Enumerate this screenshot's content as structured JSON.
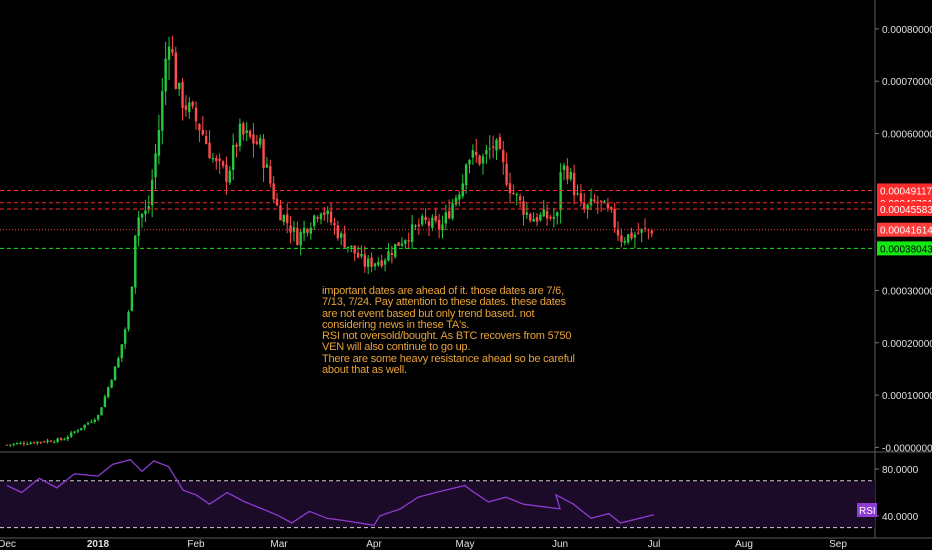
{
  "chart_data": {
    "type": "candlestick",
    "main_panel": {
      "ylim": [
        -5e-06,
        0.00084
      ],
      "y_ticks": [
        "-0.00000000",
        "0.00010000",
        "0.00020000",
        "0.00030000",
        "0.00060000",
        "0.00070000",
        "0.00080000"
      ],
      "x_ticks": [
        "Dec",
        "2018",
        "Feb",
        "Mar",
        "Apr",
        "May",
        "Jun",
        "Jul",
        "Aug",
        "Sep"
      ],
      "price_path": [
        [
          "Dec",
          5e-06
        ],
        [
          "2017-12-10",
          1e-05
        ],
        [
          "2017-12-20",
          1.5e-05
        ],
        [
          "2017-12-28",
          4.5e-05
        ],
        [
          "2018",
          6e-05
        ],
        [
          "2018-01-08",
          0.00017
        ],
        [
          "2018-01-12",
          0.00027
        ],
        [
          "2018-01-14",
          0.00044
        ],
        [
          "2018-01-18",
          0.00045
        ],
        [
          "2018-01-22",
          0.00062
        ],
        [
          "2018-01-25",
          0.0008
        ],
        [
          "2018-01-28",
          0.00068
        ],
        [
          "2018-02-05",
          0.00061
        ],
        [
          "2018-02-10",
          0.00054
        ],
        [
          "2018-02-14",
          0.00052
        ],
        [
          "2018-02-18",
          0.0006
        ],
        [
          "2018-02-25",
          0.00058
        ],
        [
          "2018-03-03",
          0.00046
        ],
        [
          "2018-03-10",
          0.0004
        ],
        [
          "2018-03-18",
          0.00046
        ],
        [
          "2018-03-25",
          0.0004
        ],
        [
          "2018-04-02",
          0.00035
        ],
        [
          "2018-04-08",
          0.00036
        ],
        [
          "2018-04-15",
          0.0004
        ],
        [
          "2018-04-22",
          0.00043
        ],
        [
          "2018-04-28",
          0.00042
        ],
        [
          "May",
          0.00052
        ],
        [
          "2018-05-05",
          0.00056
        ],
        [
          "2018-05-12",
          0.00055
        ],
        [
          "2018-05-16",
          0.00058
        ],
        [
          "2018-05-22",
          0.00049
        ],
        [
          "2018-05-28",
          0.00044
        ],
        [
          "Jun",
          0.00044
        ],
        [
          "2018-06-05",
          0.00054
        ],
        [
          "2018-06-10",
          0.00053
        ],
        [
          "2018-06-15",
          0.00045
        ],
        [
          "2018-06-20",
          0.00047
        ],
        [
          "2018-06-25",
          0.00044
        ],
        [
          "2018-06-28",
          0.0004
        ],
        [
          "Jul",
          0.000418
        ]
      ],
      "horizontal_levels": [
        {
          "label": "0.00049117",
          "value": 0.00049117,
          "color": "#ff2b2b",
          "style": "dashed"
        },
        {
          "label": "0.00046761",
          "value": 0.00046761,
          "color": "#ff2b2b",
          "style": "dashed"
        },
        {
          "label": "0.00045583",
          "value": 0.00045583,
          "color": "#ff2b2b",
          "style": "dashed"
        },
        {
          "label": "0.00041614",
          "value": 0.00041614,
          "color": "#ff3b3b",
          "style": "dotted"
        },
        {
          "label": "0.00038043",
          "value": 0.00038043,
          "color": "#12e812",
          "style": "dashed"
        }
      ],
      "annotation": "important dates are ahead of it. those dates are 7/6,\n7/13, 7/24. Pay attention to these dates. these dates\nare not event based but only trend based. not\nconsidering news in these TA's.\nRSI not oversold/bought. As BTC recovers from 5750\nVEN will also continue to go up.\nThere are some heavy resistance ahead so be careful\nabout that as well."
    },
    "rsi_panel": {
      "type": "line",
      "badge": "RSI",
      "ylim": [
        28,
        92
      ],
      "y_ticks": [
        "80.0000",
        "40.0000"
      ],
      "bands": [
        70,
        30
      ],
      "series": [
        [
          "Dec",
          66
        ],
        [
          "2017-12-06",
          60
        ],
        [
          "2017-12-12",
          72
        ],
        [
          "2017-12-18",
          64
        ],
        [
          "2017-12-24",
          76
        ],
        [
          "2018",
          74
        ],
        [
          "2018-01-06",
          84
        ],
        [
          "2018-01-12",
          88
        ],
        [
          "2018-01-16",
          78
        ],
        [
          "2018-01-20",
          87
        ],
        [
          "2018-01-25",
          82
        ],
        [
          "2018-01-30",
          62
        ],
        [
          "Feb",
          58
        ],
        [
          "2018-02-08",
          50
        ],
        [
          "2018-02-14",
          60
        ],
        [
          "2018-02-20",
          52
        ],
        [
          "2018-02-26",
          46
        ],
        [
          "Mar",
          40
        ],
        [
          "2018-03-08",
          34
        ],
        [
          "2018-03-14",
          44
        ],
        [
          "2018-03-20",
          38
        ],
        [
          "2018-03-26",
          36
        ],
        [
          "Apr",
          32
        ],
        [
          "2018-04-07",
          40
        ],
        [
          "2018-04-14",
          46
        ],
        [
          "2018-04-20",
          56
        ],
        [
          "2018-04-26",
          60
        ],
        [
          "May",
          66
        ],
        [
          "2018-05-08",
          62
        ],
        [
          "2018-05-14",
          52
        ],
        [
          "2018-05-20",
          56
        ],
        [
          "2018-05-26",
          50
        ],
        [
          "Jun",
          46
        ],
        [
          "2018-06-06",
          58
        ],
        [
          "2018-06-12",
          50
        ],
        [
          "2018-06-18",
          38
        ],
        [
          "2018-06-24",
          42
        ],
        [
          "2018-06-28",
          34
        ],
        [
          "Jul",
          41
        ]
      ]
    },
    "colors": {
      "up": "#27c840",
      "down": "#ff4b4b",
      "rsi_line": "#8e3bd1",
      "rsi_fill": "#1b0a28",
      "grid": "#2d2d2d",
      "axis_text": "#e0e0e0",
      "annotation": "#e8a23a"
    }
  }
}
